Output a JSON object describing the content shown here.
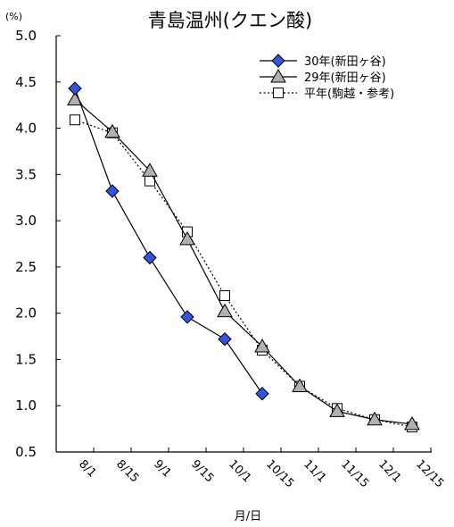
{
  "chart_data": {
    "type": "line",
    "title": "青島温州(クエン酸)",
    "unit_label": "(%)",
    "xlabel": "月/日",
    "ylabel": "",
    "ylim": [
      0.5,
      5.0
    ],
    "yticks": [
      "5.0",
      "4.5",
      "4.0",
      "3.5",
      "3.0",
      "2.5",
      "2.0",
      "1.5",
      "1.0",
      "0.5"
    ],
    "x_tick_labels": [
      "8/1",
      "8/15",
      "9/1",
      "9/15",
      "10/1",
      "10/15",
      "11/1",
      "11/15",
      "12/1",
      "12/15"
    ],
    "grid": false,
    "legend_position": "top-right",
    "series": [
      {
        "name": "30年(新田ヶ谷)",
        "marker": "diamond",
        "line": "solid",
        "fill": "#3355dd",
        "values": [
          4.43,
          3.32,
          2.6,
          1.96,
          1.72,
          1.13,
          null,
          null,
          null,
          null
        ]
      },
      {
        "name": "29年(新田ヶ谷)",
        "marker": "triangle",
        "line": "solid",
        "fill": "#b0b0b0",
        "values": [
          4.31,
          3.96,
          3.54,
          2.8,
          2.02,
          1.64,
          1.21,
          0.94,
          0.85,
          0.8
        ]
      },
      {
        "name": "平年(駒越・参考)",
        "marker": "square",
        "line": "dotted",
        "fill": "#ffffff",
        "values": [
          4.09,
          3.95,
          3.43,
          2.88,
          2.19,
          1.6,
          1.21,
          0.97,
          0.85,
          0.77
        ]
      }
    ]
  }
}
